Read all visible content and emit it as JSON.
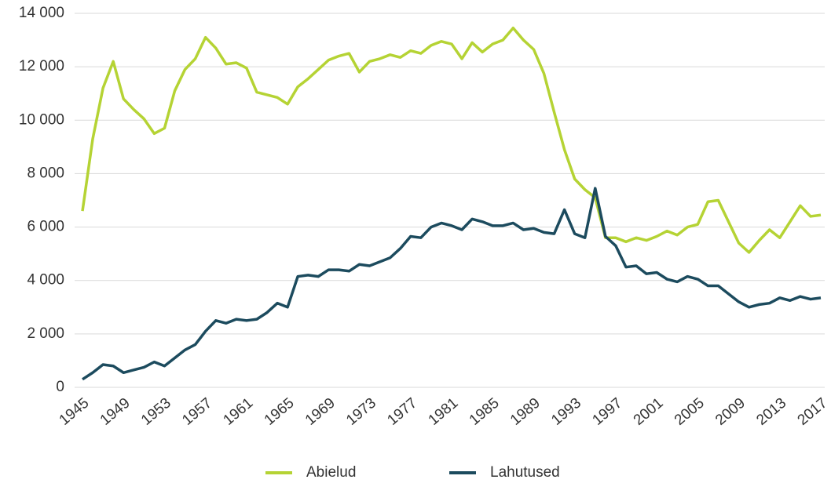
{
  "chart_data": {
    "type": "line",
    "x": [
      1945,
      1946,
      1947,
      1948,
      1949,
      1950,
      1951,
      1952,
      1953,
      1954,
      1955,
      1956,
      1957,
      1958,
      1959,
      1960,
      1961,
      1962,
      1963,
      1964,
      1965,
      1966,
      1967,
      1968,
      1969,
      1970,
      1971,
      1972,
      1973,
      1974,
      1975,
      1976,
      1977,
      1978,
      1979,
      1980,
      1981,
      1982,
      1983,
      1984,
      1985,
      1986,
      1987,
      1988,
      1989,
      1990,
      1991,
      1992,
      1993,
      1994,
      1995,
      1996,
      1997,
      1998,
      1999,
      2000,
      2001,
      2002,
      2003,
      2004,
      2005,
      2006,
      2007,
      2008,
      2009,
      2010,
      2011,
      2012,
      2013,
      2014,
      2015,
      2016,
      2017
    ],
    "series": [
      {
        "name": "Abielud",
        "color": "#b5d334",
        "values": [
          6600,
          9300,
          11200,
          12200,
          10800,
          10400,
          10050,
          9500,
          9700,
          11100,
          11900,
          12300,
          13100,
          12700,
          12100,
          12150,
          11950,
          11050,
          10950,
          10850,
          10600,
          11250,
          11550,
          11900,
          12250,
          12400,
          12500,
          11800,
          12200,
          12300,
          12450,
          12350,
          12600,
          12500,
          12800,
          12950,
          12850,
          12300,
          12900,
          12550,
          12850,
          13000,
          13450,
          13000,
          12650,
          11750,
          10300,
          8900,
          7800,
          7400,
          7100,
          5600,
          5600,
          5450,
          5600,
          5500,
          5650,
          5850,
          5700,
          6000,
          6100,
          6950,
          7000,
          6200,
          5400,
          5050,
          5500,
          5900,
          5600,
          6200,
          6800,
          6400,
          6450
        ]
      },
      {
        "name": "Lahutused",
        "color": "#1c4b5e",
        "values": [
          300,
          550,
          850,
          800,
          550,
          650,
          750,
          950,
          800,
          1100,
          1400,
          1600,
          2100,
          2500,
          2400,
          2550,
          2500,
          2550,
          2800,
          3150,
          3000,
          4150,
          4200,
          4150,
          4400,
          4400,
          4350,
          4600,
          4550,
          4700,
          4850,
          5200,
          5650,
          5600,
          6000,
          6150,
          6050,
          5900,
          6300,
          6200,
          6050,
          6050,
          6150,
          5900,
          5950,
          5800,
          5750,
          6650,
          5750,
          5600,
          7450,
          5650,
          5300,
          4500,
          4550,
          4250,
          4300,
          4050,
          3950,
          4150,
          4050,
          3800,
          3800,
          3500,
          3200,
          3000,
          3100,
          3150,
          3350,
          3250,
          3400,
          3300,
          3350
        ]
      }
    ],
    "xlim": [
      1945,
      2017
    ],
    "xticks": [
      1945,
      1949,
      1953,
      1957,
      1961,
      1965,
      1969,
      1973,
      1977,
      1981,
      1985,
      1989,
      1993,
      1997,
      2001,
      2005,
      2009,
      2013,
      2017
    ],
    "ylim": [
      0,
      14000
    ],
    "yticks": [
      0,
      {
        "value": 2000,
        "label": "2 000"
      },
      {
        "value": 4000,
        "label": "4 000"
      },
      {
        "value": 6000,
        "label": "6 000"
      },
      {
        "value": 8000,
        "label": "8 000"
      },
      {
        "value": 10000,
        "label": "10 000"
      },
      {
        "value": 12000,
        "label": "12 000"
      },
      {
        "value": 14000,
        "label": "14 000"
      }
    ],
    "grid": true,
    "legend": "bottom"
  }
}
